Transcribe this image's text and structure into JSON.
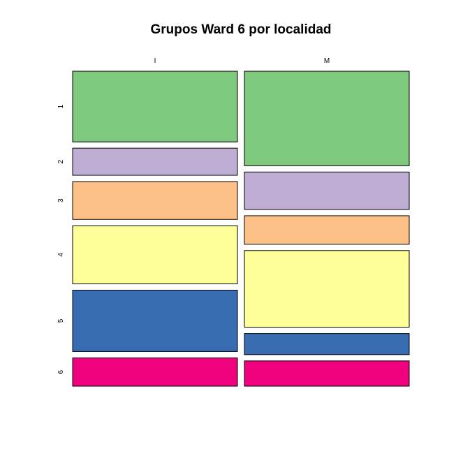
{
  "chart_data": {
    "type": "mosaic",
    "title": "Grupos Ward 6 por localidad",
    "columns": [
      "I",
      "M"
    ],
    "rows": [
      "1",
      "2",
      "3",
      "4",
      "5",
      "6"
    ],
    "column_widths": [
      0.5,
      0.5
    ],
    "proportions": {
      "I": [
        0.237,
        0.091,
        0.127,
        0.195,
        0.206,
        0.095
      ],
      "M": [
        0.318,
        0.126,
        0.096,
        0.258,
        0.071,
        0.085
      ]
    },
    "colors": [
      "#7FC97F",
      "#BEAED4",
      "#FDC086",
      "#FFFF99",
      "#386CB0",
      "#F0027F"
    ]
  }
}
